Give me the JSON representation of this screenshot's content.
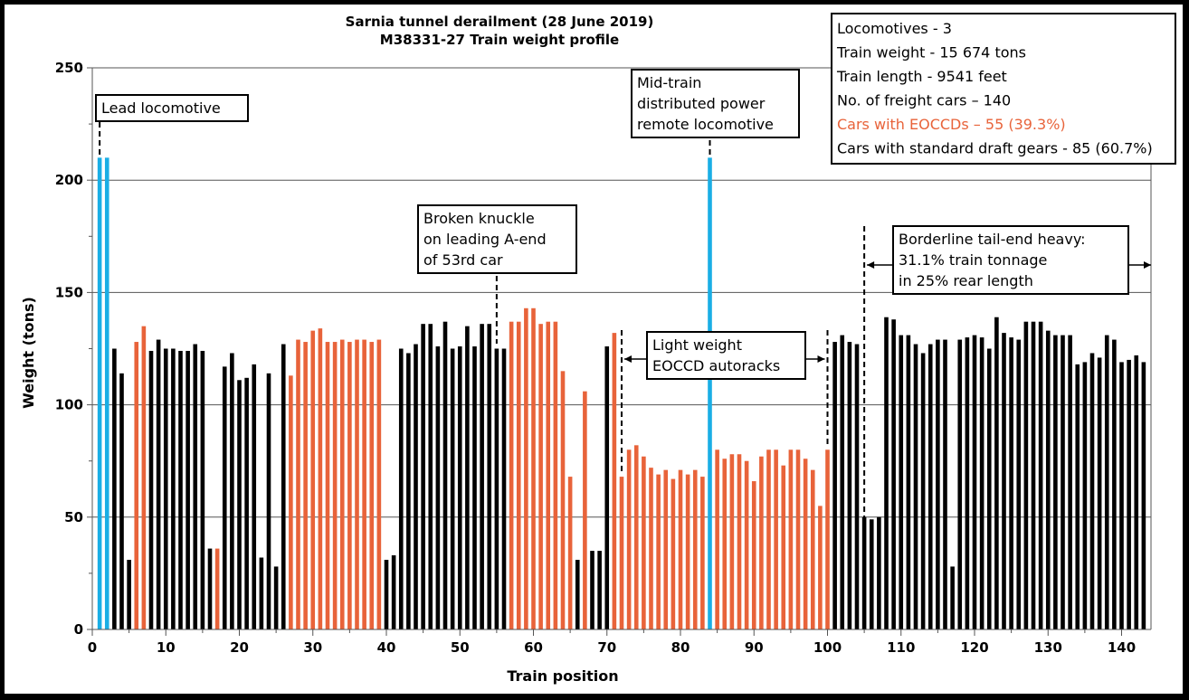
{
  "chart_data": {
    "type": "bar",
    "title": "Sarnia tunnel derailment (28 June 2019)",
    "subtitle": "M38331-27 Train weight profile",
    "xlabel": "Train position",
    "ylabel": "Weight (tons)",
    "xlim": [
      0,
      144
    ],
    "ylim": [
      0,
      250
    ],
    "xticks": [
      0,
      10,
      20,
      30,
      40,
      50,
      60,
      70,
      80,
      90,
      100,
      110,
      120,
      130,
      140
    ],
    "yticks": [
      0,
      50,
      100,
      150,
      200,
      250
    ],
    "grid": "horizontal",
    "colors": {
      "L": "#1aaee5",
      "E": "#e8633a",
      "S": "#000000"
    },
    "legend_types": {
      "L": "Locomotive",
      "E": "Car with EOCCD",
      "S": "Car with standard draft gear"
    },
    "values": [
      210,
      210,
      125,
      114,
      31,
      128,
      135,
      124,
      129,
      125,
      125,
      124,
      124,
      127,
      124,
      36,
      36,
      117,
      123,
      111,
      112,
      118,
      32,
      114,
      28,
      127,
      113,
      129,
      128,
      133,
      134,
      128,
      128,
      129,
      128,
      129,
      129,
      128,
      129,
      31,
      33,
      125,
      123,
      127,
      136,
      136,
      126,
      137,
      125,
      126,
      135,
      126,
      136,
      136,
      125,
      125,
      137,
      137,
      143,
      143,
      136,
      137,
      137,
      115,
      68,
      31,
      106,
      35,
      35,
      126,
      132,
      68,
      80,
      82,
      77,
      72,
      69,
      71,
      67,
      71,
      69,
      71,
      68,
      210,
      80,
      76,
      78,
      78,
      75,
      66,
      77,
      80,
      80,
      73,
      80,
      80,
      76,
      71,
      55,
      80,
      128,
      131,
      128,
      127,
      50,
      49,
      50,
      139,
      138,
      131,
      131,
      127,
      123,
      127,
      129,
      129,
      28,
      129,
      130,
      131,
      130,
      125,
      139,
      132,
      130,
      129,
      137,
      137,
      137,
      133,
      131,
      131,
      131,
      118,
      119,
      123,
      121,
      131,
      129,
      119,
      120,
      122,
      119
    ],
    "types": "LLSSSEESSSSSSSSSESSSSSSSSSEEEEEEEEEEEEESSSSSSSSSSSSSSSSSEEEEEEEEESESSSEEEEEEEEEEEEELEEEEEEEEEEEEEEEESSSSSSSSSSSSSSSSSSSSSSSSSSSSSSSSSSSSSSSSSSS",
    "info_box": [
      {
        "text": "Locomotives - 3",
        "color": "#000000"
      },
      {
        "text": "Train weight - 15 674 tons",
        "color": "#000000"
      },
      {
        "text": "Train length - 9541 feet",
        "color": "#000000"
      },
      {
        "text": "No. of freight cars – 140",
        "color": "#000000"
      },
      {
        "text": "Cars with EOCCDs – 55 (39.3%)",
        "color": "#e8633a"
      },
      {
        "text": "Cars with standard draft gears - 85 (60.7%)",
        "color": "#000000"
      }
    ],
    "annotations": [
      {
        "id": "lead",
        "lines": [
          "Lead locomotive"
        ],
        "position": 1
      },
      {
        "id": "midtrain",
        "lines": [
          "Mid-train",
          "distributed power",
          "remote locomotive"
        ],
        "position": 84
      },
      {
        "id": "knuckle",
        "lines": [
          "Broken knuckle",
          "on leading A-end",
          "of 53rd car"
        ],
        "position": 55
      },
      {
        "id": "autoracks",
        "lines": [
          "Light weight",
          "EOCCD autoracks"
        ],
        "range": [
          72,
          100
        ]
      },
      {
        "id": "tailend",
        "lines": [
          "Borderline tail-end heavy:",
          "31.1% train tonnage",
          "in 25% rear length"
        ],
        "range": [
          105,
          144
        ]
      }
    ]
  }
}
